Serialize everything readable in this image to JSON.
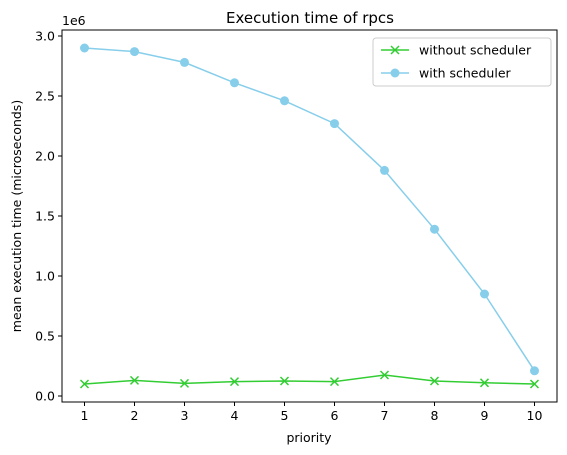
{
  "chart_data": {
    "type": "line",
    "title": "Execution time of rpcs",
    "xlabel": "priority",
    "ylabel": "mean execution time (microseconds)",
    "y_scale_label": "1e6",
    "x": [
      1,
      2,
      3,
      4,
      5,
      6,
      7,
      8,
      9,
      10
    ],
    "x_ticks": [
      "1",
      "2",
      "3",
      "4",
      "5",
      "6",
      "7",
      "8",
      "9",
      "10"
    ],
    "y_ticks": [
      0.0,
      0.5,
      1.0,
      1.5,
      2.0,
      2.5,
      3.0
    ],
    "y_tick_labels": [
      "0.0",
      "0.5",
      "1.0",
      "1.5",
      "2.0",
      "2.5",
      "3.0"
    ],
    "xlim": [
      0.55,
      10.45
    ],
    "ylim": [
      -0.05,
      3.05
    ],
    "grid": false,
    "legend_position": "top-right",
    "series": [
      {
        "name": "without scheduler",
        "color": "#32cd32",
        "marker": "x",
        "values": [
          0.1,
          0.13,
          0.105,
          0.12,
          0.125,
          0.12,
          0.175,
          0.125,
          0.11,
          0.1
        ]
      },
      {
        "name": "with scheduler",
        "color": "#87ceeb",
        "marker": "circle",
        "values": [
          2.9,
          2.87,
          2.78,
          2.61,
          2.46,
          2.27,
          1.88,
          1.39,
          0.85,
          0.21
        ]
      }
    ]
  }
}
